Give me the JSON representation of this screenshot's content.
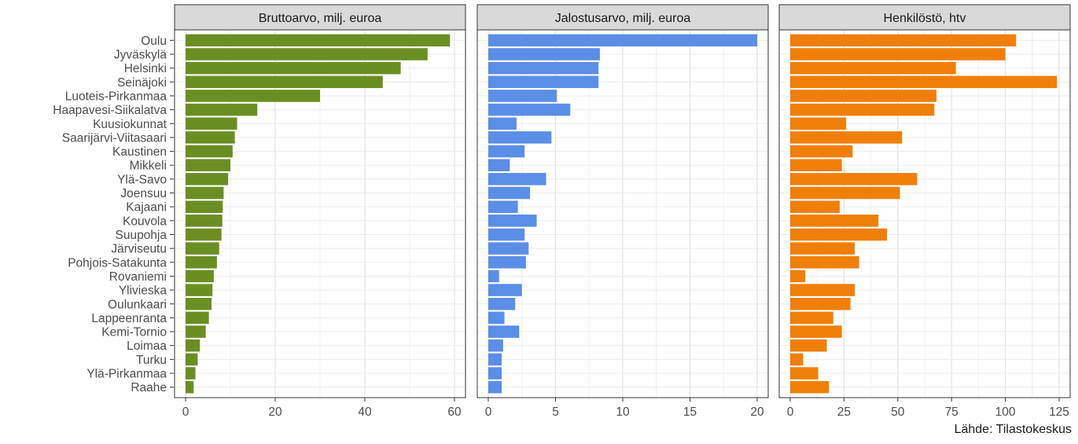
{
  "caption": "Lähde: Tilastokeskus",
  "chart_data": {
    "type": "bar",
    "orientation": "horizontal",
    "grid": true,
    "categories": [
      "Oulu",
      "Jyväskylä",
      "Helsinki",
      "Seinäjoki",
      "Luoteis-Pirkanmaa",
      "Haapavesi-Siikalatva",
      "Kuusiokunnat",
      "Saarijärvi-Viitasaari",
      "Kaustinen",
      "Mikkeli",
      "Ylä-Savo",
      "Joensuu",
      "Kajaani",
      "Kouvola",
      "Suupohja",
      "Järviseutu",
      "Pohjois-Satakunta",
      "Rovaniemi",
      "Ylivieska",
      "Oulunkaari",
      "Lappeenranta",
      "Kemi-Tornio",
      "Loimaa",
      "Turku",
      "Ylä-Pirkanmaa",
      "Raahe"
    ],
    "panels": [
      {
        "title": "Bruttoarvo, milj. euroa",
        "color": "#6b8e23",
        "xlim": [
          0,
          60
        ],
        "ticks": [
          0,
          20,
          40,
          60
        ],
        "values": [
          59,
          54,
          48,
          44,
          30,
          16,
          11.5,
          11,
          10.5,
          10,
          9.5,
          8.5,
          8.3,
          8.2,
          8,
          7.5,
          7,
          6.3,
          6,
          5.8,
          5.2,
          4.5,
          3.2,
          2.7,
          2.2,
          1.8
        ]
      },
      {
        "title": "Jalostusarvo, milj. euroa",
        "color": "#5b8ee6",
        "xlim": [
          0,
          20
        ],
        "ticks": [
          0,
          5,
          10,
          15,
          20
        ],
        "values": [
          20,
          8.3,
          8.2,
          8.2,
          5.1,
          6.1,
          2.1,
          4.7,
          2.7,
          1.6,
          4.3,
          3.1,
          2.2,
          3.6,
          2.7,
          3.0,
          2.8,
          0.8,
          2.5,
          2.0,
          1.2,
          2.3,
          1.1,
          1.0,
          1.0,
          1.0
        ]
      },
      {
        "title": "Henkilöstö, htv",
        "color": "#f07f09",
        "xlim": [
          0,
          125
        ],
        "ticks": [
          0,
          25,
          50,
          75,
          100,
          125
        ],
        "values": [
          105,
          100,
          77,
          124,
          68,
          67,
          26,
          52,
          29,
          24,
          59,
          51,
          23,
          41,
          45,
          30,
          32,
          7,
          30,
          28,
          20,
          24,
          17,
          6,
          13,
          18
        ]
      }
    ]
  }
}
